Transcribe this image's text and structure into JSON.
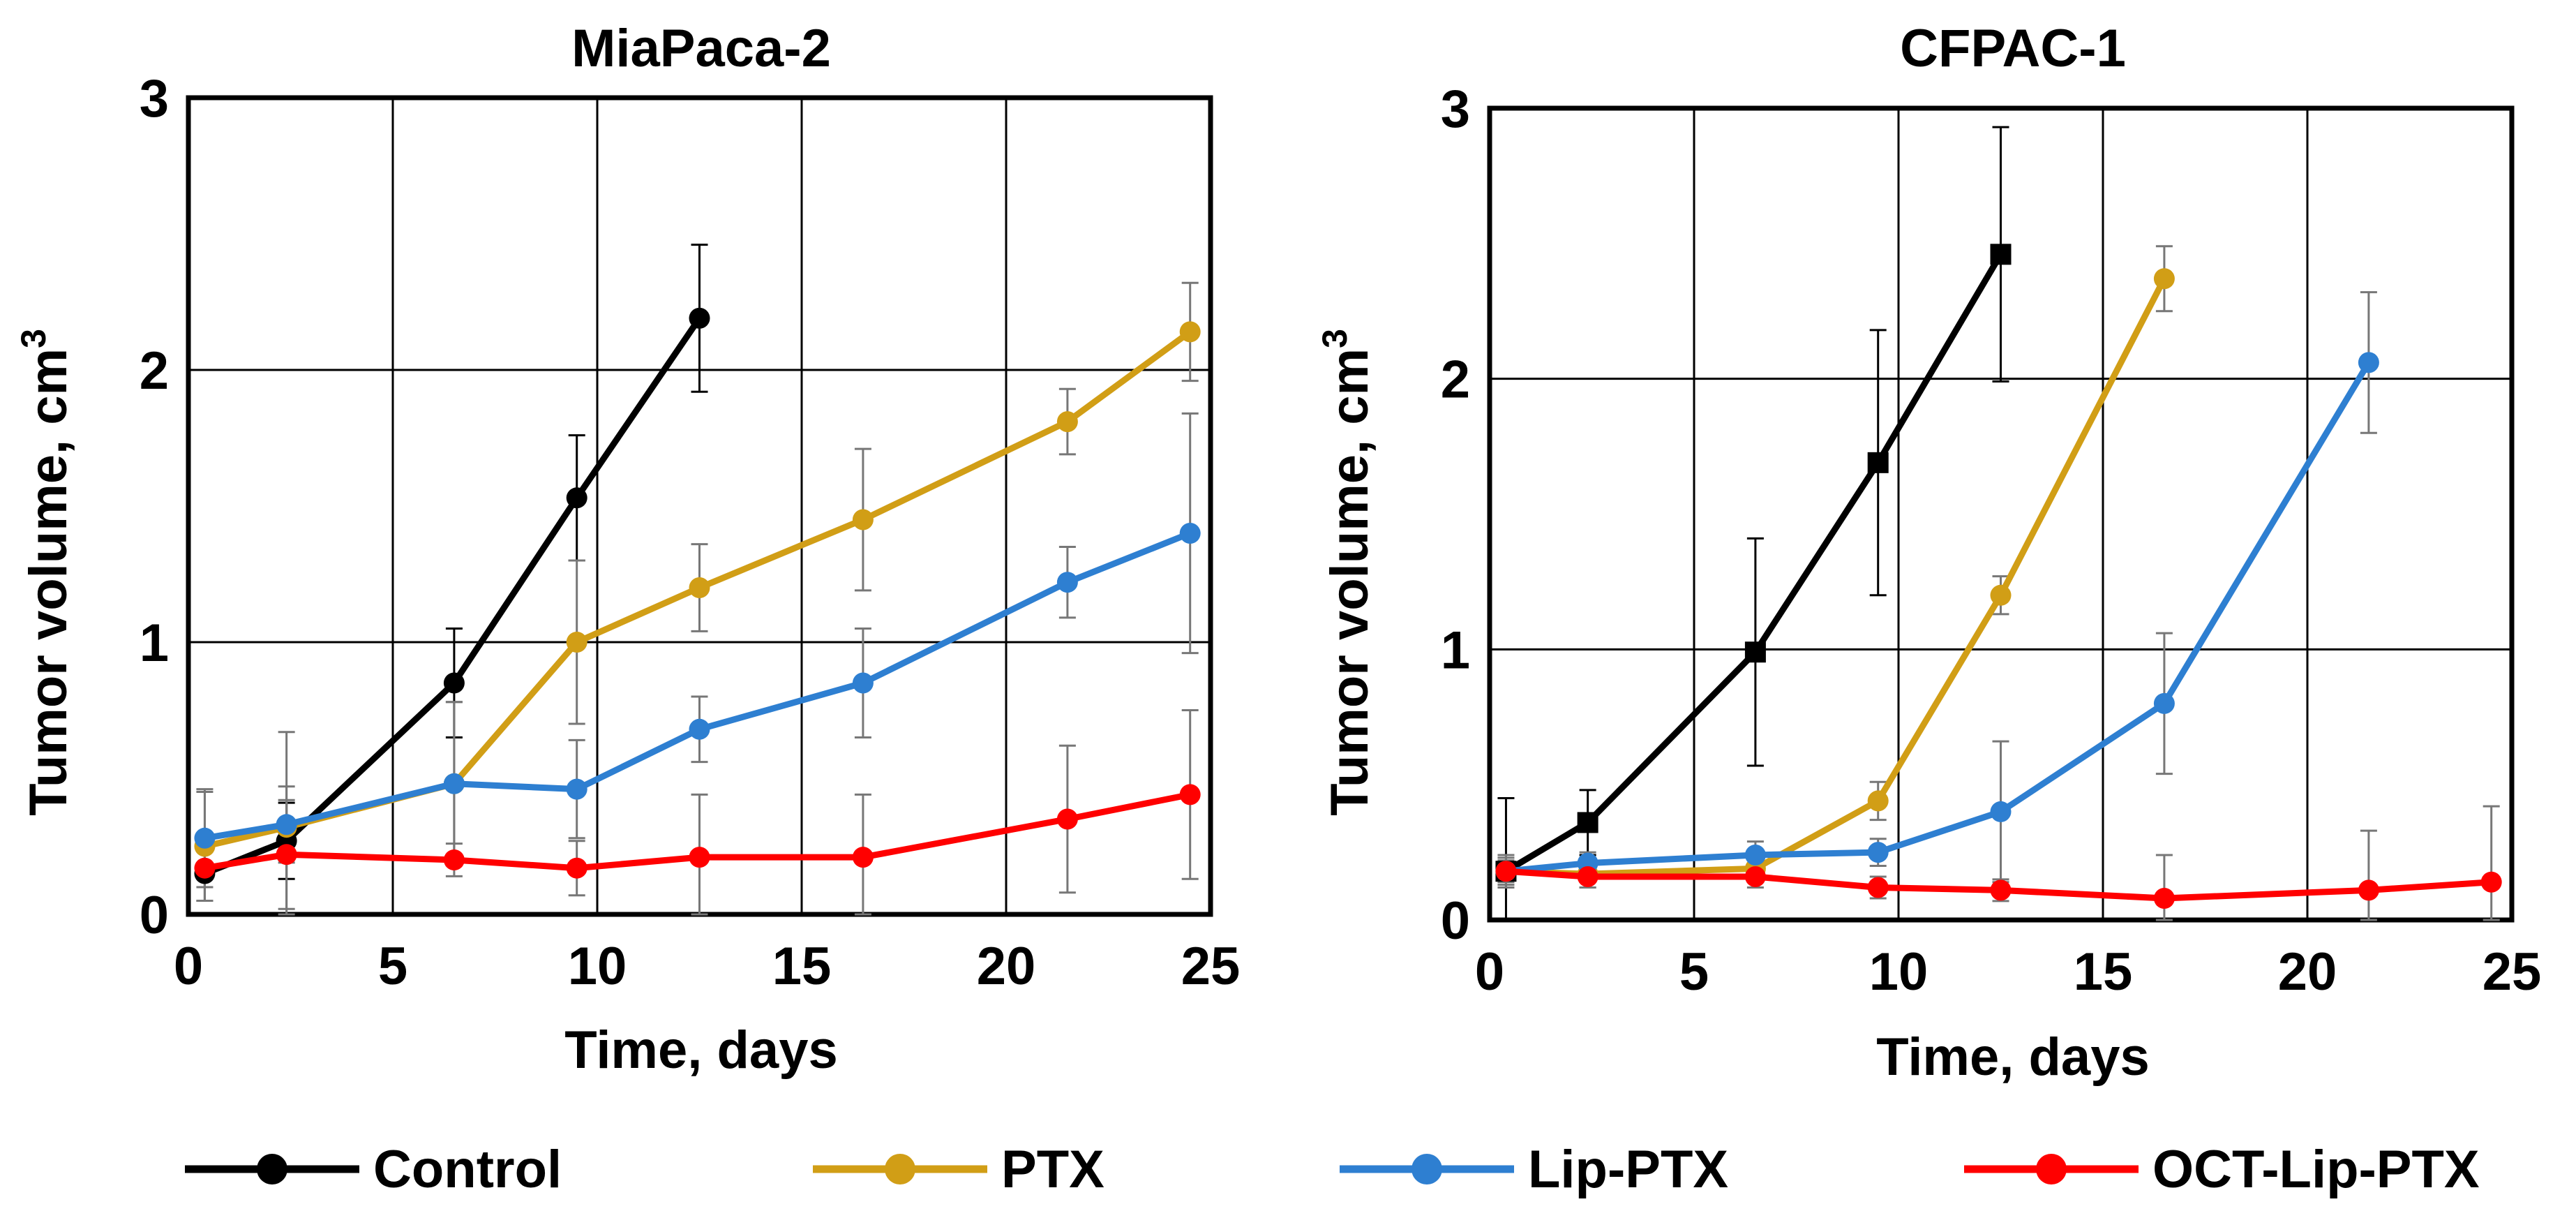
{
  "chart_data": [
    {
      "type": "line",
      "title": "MiaPaca-2",
      "xlabel": "Time, days",
      "ylabel": "Tumor volume, cm",
      "ylabel_superscript": "3",
      "xlim": [
        0,
        25
      ],
      "ylim": [
        0,
        3
      ],
      "xticks": [
        0,
        5,
        10,
        15,
        20,
        25
      ],
      "yticks": [
        0,
        1,
        2,
        3
      ],
      "grid": true,
      "series": [
        {
          "name": "Control",
          "color": "#000000",
          "marker": "circle",
          "x": [
            0.4,
            2.4,
            6.5,
            9.5,
            12.5
          ],
          "y": [
            0.15,
            0.27,
            0.85,
            1.53,
            2.19
          ],
          "err": [
            0.1,
            0.14,
            0.2,
            0.23,
            0.27
          ]
        },
        {
          "name": "PTX",
          "color": "#D19E16",
          "marker": "circle",
          "x": [
            0.4,
            2.4,
            6.5,
            9.5,
            12.5,
            16.5,
            21.5,
            24.5
          ],
          "y": [
            0.25,
            0.32,
            0.48,
            1.0,
            1.2,
            1.45,
            1.81,
            2.14
          ],
          "err": [
            0.2,
            0.35,
            0.3,
            0.3,
            0.16,
            0.26,
            0.12,
            0.18
          ]
        },
        {
          "name": "Lip-PTX",
          "color": "#2E7FD1",
          "marker": "circle",
          "x": [
            0.4,
            2.4,
            6.5,
            9.5,
            12.5,
            16.5,
            21.5,
            24.5
          ],
          "y": [
            0.28,
            0.33,
            0.48,
            0.46,
            0.68,
            0.85,
            1.22,
            1.4
          ],
          "err": [
            0.18,
            0.14,
            0.3,
            0.18,
            0.12,
            0.2,
            0.13,
            0.44
          ]
        },
        {
          "name": "OCT-Lip-PTX",
          "color": "#FF0000",
          "marker": "circle",
          "x": [
            0.4,
            2.4,
            6.5,
            9.5,
            12.5,
            16.5,
            21.5,
            24.5
          ],
          "y": [
            0.17,
            0.22,
            0.2,
            0.17,
            0.21,
            0.21,
            0.35,
            0.44
          ],
          "err": [
            0.12,
            0.2,
            0.06,
            0.1,
            0.23,
            0.23,
            0.27,
            0.31
          ]
        }
      ]
    },
    {
      "type": "line",
      "title": "CFPAC-1",
      "xlabel": "Time, days",
      "ylabel": "Tumor volume, cm",
      "ylabel_superscript": "3",
      "xlim": [
        0,
        25
      ],
      "ylim": [
        0,
        3
      ],
      "xticks": [
        0,
        5,
        10,
        15,
        20,
        25
      ],
      "yticks": [
        0,
        1,
        2,
        3
      ],
      "grid": true,
      "series": [
        {
          "name": "Control",
          "color": "#000000",
          "marker": "square",
          "x": [
            0.4,
            2.4,
            6.5,
            9.5,
            12.5
          ],
          "y": [
            0.18,
            0.36,
            0.99,
            1.69,
            2.46
          ],
          "err": [
            0.27,
            0.12,
            0.42,
            0.49,
            0.47
          ]
        },
        {
          "name": "PTX",
          "color": "#D19E16",
          "marker": "circle",
          "x": [
            0.4,
            2.4,
            6.5,
            9.5,
            12.5,
            16.5
          ],
          "y": [
            0.18,
            0.17,
            0.19,
            0.44,
            1.2,
            2.37
          ],
          "err": [
            0.06,
            0.05,
            0.05,
            0.07,
            0.07,
            0.12
          ]
        },
        {
          "name": "Lip-PTX",
          "color": "#2E7FD1",
          "marker": "circle",
          "x": [
            0.4,
            2.4,
            6.5,
            9.5,
            12.5,
            16.5,
            21.5
          ],
          "y": [
            0.18,
            0.21,
            0.24,
            0.25,
            0.4,
            0.8,
            2.06
          ],
          "err": [
            0.04,
            0.04,
            0.05,
            0.05,
            0.26,
            0.26,
            0.26
          ]
        },
        {
          "name": "OCT-Lip-PTX",
          "color": "#FF0000",
          "marker": "circle",
          "x": [
            0.4,
            2.4,
            6.5,
            9.5,
            12.5,
            16.5,
            21.5,
            24.5
          ],
          "y": [
            0.18,
            0.16,
            0.16,
            0.12,
            0.11,
            0.08,
            0.11,
            0.14
          ],
          "err": [
            0.05,
            0.04,
            0.04,
            0.04,
            0.04,
            0.16,
            0.22,
            0.28
          ]
        }
      ]
    }
  ],
  "legend": {
    "placement": "bottom",
    "items": [
      {
        "label": "Control",
        "color": "#000000"
      },
      {
        "label": "PTX",
        "color": "#D19E16"
      },
      {
        "label": "Lip-PTX",
        "color": "#2E7FD1"
      },
      {
        "label": "OCT-Lip-PTX",
        "color": "#FF0000"
      }
    ]
  }
}
